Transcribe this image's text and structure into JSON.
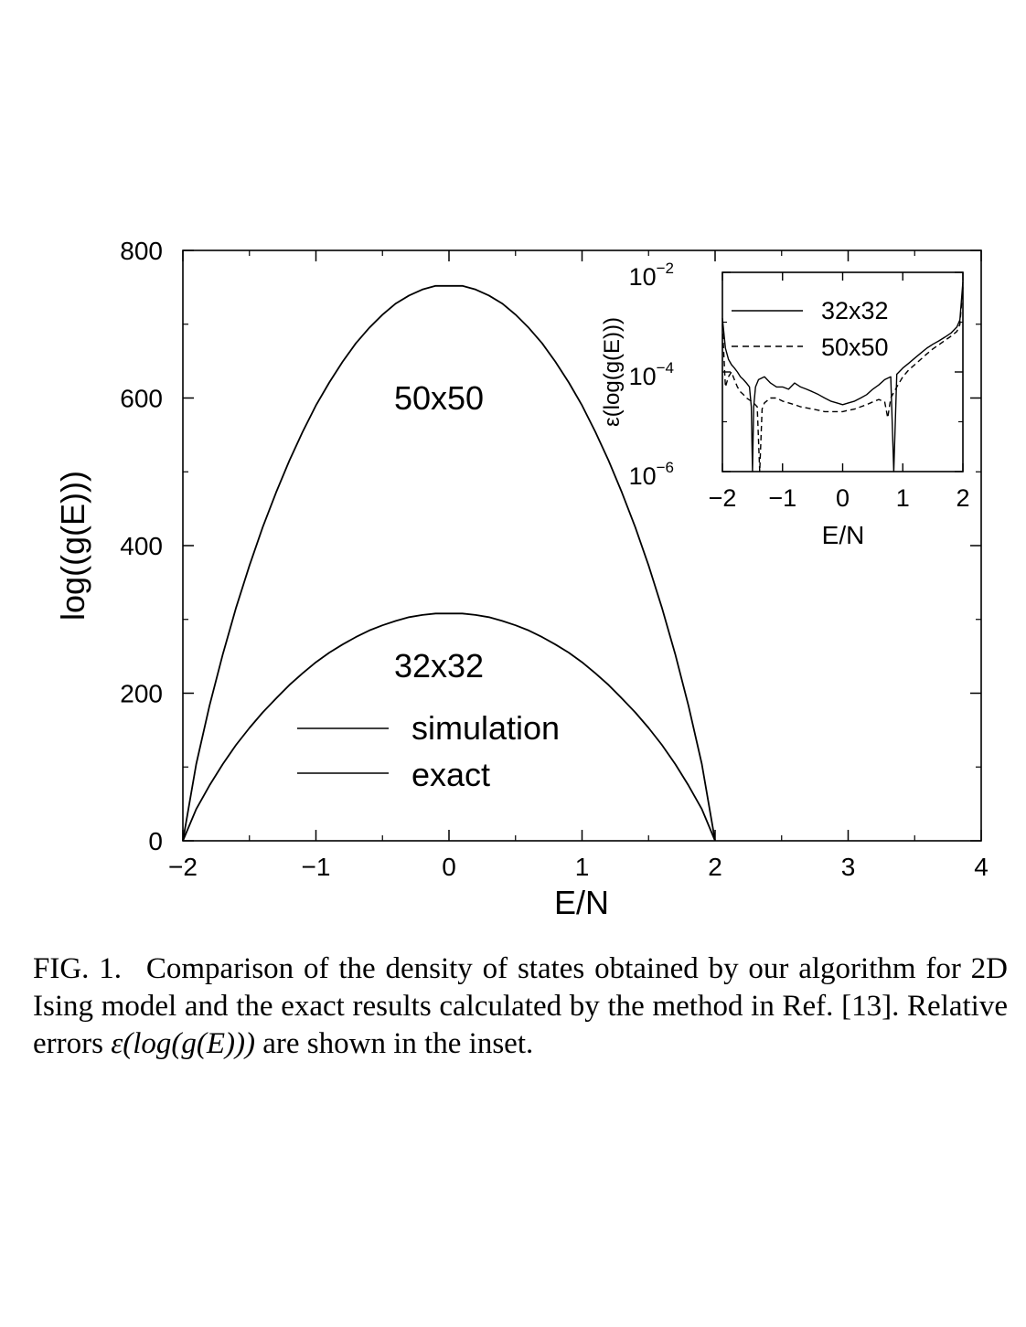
{
  "chart_data": [
    {
      "type": "line",
      "xlabel": "E/N",
      "ylabel": "log((g(E)))",
      "xlim": [
        -2,
        4
      ],
      "ylim": [
        0,
        800
      ],
      "x_ticks": [
        -2,
        -1,
        0,
        1,
        2,
        3,
        4
      ],
      "x_tick_labels": [
        "−2",
        "−1",
        "0",
        "1",
        "2",
        "3",
        "4"
      ],
      "y_ticks": [
        0,
        200,
        400,
        600,
        800
      ],
      "y_tick_labels": [
        "0",
        "200",
        "400",
        "600",
        "800"
      ],
      "grid": false,
      "legend": {
        "placement": "lower-center",
        "entries": [
          {
            "label": "simulation",
            "style": "solid"
          },
          {
            "label": "exact",
            "style": "solid"
          }
        ]
      },
      "annotations": [
        {
          "text": "50x50",
          "x": -0.05,
          "y": 600
        },
        {
          "text": "32x32",
          "x": -0.05,
          "y": 238
        }
      ],
      "series": [
        {
          "label": "50x50",
          "x": [
            -2.0,
            -1.9,
            -1.8,
            -1.7,
            -1.6,
            -1.5,
            -1.4,
            -1.3,
            -1.2,
            -1.1,
            -1.0,
            -0.9,
            -0.8,
            -0.7,
            -0.6,
            -0.5,
            -0.4,
            -0.3,
            -0.2,
            -0.1,
            0.0,
            0.1,
            0.2,
            0.3,
            0.4,
            0.5,
            0.6,
            0.7,
            0.8,
            0.9,
            1.0,
            1.1,
            1.2,
            1.3,
            1.4,
            1.5,
            1.6,
            1.7,
            1.8,
            1.9,
            2.0
          ],
          "y": [
            0,
            104,
            183,
            253,
            316,
            373,
            425,
            472,
            515,
            554,
            590,
            621,
            649,
            674,
            695,
            713,
            728,
            739,
            747,
            752,
            752,
            752,
            747,
            739,
            728,
            713,
            695,
            674,
            649,
            621,
            590,
            554,
            515,
            472,
            425,
            373,
            316,
            253,
            183,
            104,
            0
          ]
        },
        {
          "label": "32x32",
          "x": [
            -2.0,
            -1.9,
            -1.8,
            -1.7,
            -1.6,
            -1.5,
            -1.4,
            -1.3,
            -1.2,
            -1.1,
            -1.0,
            -0.9,
            -0.8,
            -0.7,
            -0.6,
            -0.5,
            -0.4,
            -0.3,
            -0.2,
            -0.1,
            0.0,
            0.1,
            0.2,
            0.3,
            0.4,
            0.5,
            0.6,
            0.7,
            0.8,
            0.9,
            1.0,
            1.1,
            1.2,
            1.3,
            1.4,
            1.5,
            1.6,
            1.7,
            1.8,
            1.9,
            2.0
          ],
          "y": [
            0,
            43,
            75,
            104,
            130,
            153,
            174,
            193,
            211,
            227,
            242,
            255,
            266,
            276,
            285,
            292,
            298,
            303,
            306,
            308,
            308,
            308,
            306,
            303,
            298,
            292,
            285,
            276,
            266,
            255,
            242,
            227,
            211,
            193,
            174,
            153,
            130,
            104,
            75,
            43,
            0
          ]
        }
      ]
    },
    {
      "type": "line",
      "role": "inset",
      "xlabel": "E/N",
      "ylabel": "ε(log(g(E)))",
      "xlim": [
        -2,
        2
      ],
      "ylim": [
        1e-06,
        0.01
      ],
      "yscale": "log",
      "x_ticks": [
        -2,
        -1,
        0,
        1,
        2
      ],
      "x_tick_labels": [
        "−2",
        "−1",
        "0",
        "1",
        "2"
      ],
      "y_ticks": [
        1e-06,
        0.0001,
        0.01
      ],
      "y_tick_labels": [
        {
          "base": "10",
          "exp": "−6"
        },
        {
          "base": "10",
          "exp": "−4"
        },
        {
          "base": "10",
          "exp": "−2"
        }
      ],
      "grid": false,
      "legend": {
        "placement": "top-right",
        "entries": [
          {
            "label": "32x32",
            "style": "solid"
          },
          {
            "label": "50x50",
            "style": "dashed"
          }
        ]
      },
      "series": [
        {
          "label": "32x32",
          "style": "solid",
          "x": [
            -2.0,
            -1.95,
            -1.9,
            -1.85,
            -1.8,
            -1.75,
            -1.7,
            -1.65,
            -1.6,
            -1.55,
            -1.52,
            -1.5,
            -1.48,
            -1.45,
            -1.4,
            -1.3,
            -1.2,
            -1.1,
            -1.0,
            -0.9,
            -0.8,
            -0.7,
            -0.6,
            -0.5,
            -0.4,
            -0.3,
            -0.2,
            -0.1,
            0.0,
            0.1,
            0.2,
            0.3,
            0.4,
            0.5,
            0.6,
            0.7,
            0.8,
            0.85,
            0.9,
            1.0,
            1.1,
            1.2,
            1.3,
            1.4,
            1.5,
            1.6,
            1.7,
            1.8,
            1.9,
            1.95,
            2.0
          ],
          "y": [
            0.0012,
            0.0003,
            0.00018,
            0.00014,
            0.00012,
            0.0001,
            8e-05,
            7e-05,
            6e-05,
            5e-05,
            2e-05,
            1e-06,
            2e-05,
            5e-05,
            7e-05,
            8e-05,
            6e-05,
            5e-05,
            5e-05,
            4.5e-05,
            6e-05,
            5e-05,
            4.5e-05,
            4e-05,
            3.5e-05,
            3e-05,
            2.6e-05,
            2.4e-05,
            2.2e-05,
            2.4e-05,
            2.6e-05,
            3e-05,
            3.5e-05,
            4.5e-05,
            5.5e-05,
            7e-05,
            8e-05,
            1e-06,
            9e-05,
            0.00012,
            0.00015,
            0.00019,
            0.00024,
            0.0003,
            0.00036,
            0.00042,
            0.0005,
            0.0006,
            0.0008,
            0.0011,
            0.0065
          ]
        },
        {
          "label": "50x50",
          "style": "dashed",
          "x": [
            -2.0,
            -1.95,
            -1.9,
            -1.85,
            -1.8,
            -1.75,
            -1.7,
            -1.65,
            -1.6,
            -1.5,
            -1.42,
            -1.38,
            -1.34,
            -1.3,
            -1.2,
            -1.1,
            -1.0,
            -0.9,
            -0.8,
            -0.7,
            -0.6,
            -0.5,
            -0.4,
            -0.3,
            -0.2,
            -0.1,
            0.0,
            0.1,
            0.2,
            0.3,
            0.4,
            0.5,
            0.6,
            0.7,
            0.75,
            0.8,
            0.9,
            1.0,
            1.1,
            1.2,
            1.3,
            1.4,
            1.5,
            1.6,
            1.7,
            1.8,
            1.9,
            1.95,
            2.0
          ],
          "y": [
            0.0009,
            5e-05,
            8e-05,
            0.0001,
            7e-05,
            5e-05,
            4e-05,
            3.5e-05,
            3e-05,
            2.5e-05,
            2e-05,
            1e-06,
            1.8e-05,
            2.4e-05,
            3e-05,
            3e-05,
            2.6e-05,
            2.4e-05,
            2.2e-05,
            2e-05,
            1.9e-05,
            1.8e-05,
            1.7e-05,
            1.6e-05,
            1.6e-05,
            1.6e-05,
            1.6e-05,
            1.7e-05,
            1.8e-05,
            2e-05,
            2.2e-05,
            2.5e-05,
            2.8e-05,
            2.5e-05,
            1.2e-05,
            3e-05,
            5e-05,
            8e-05,
            0.00011,
            0.00014,
            0.00018,
            0.00023,
            0.00029,
            0.00035,
            0.00043,
            0.00052,
            0.00065,
            0.0009,
            0.005
          ]
        }
      ]
    }
  ],
  "caption": {
    "label": "FIG. 1.",
    "text_before": "Comparison of the density of states obtained by our algorithm for 2D Ising model and the exact results calculated by the method in Ref. [13]. Relative errors",
    "symbol": "ε(log(g(E)))",
    "text_after": "are shown in the inset."
  }
}
